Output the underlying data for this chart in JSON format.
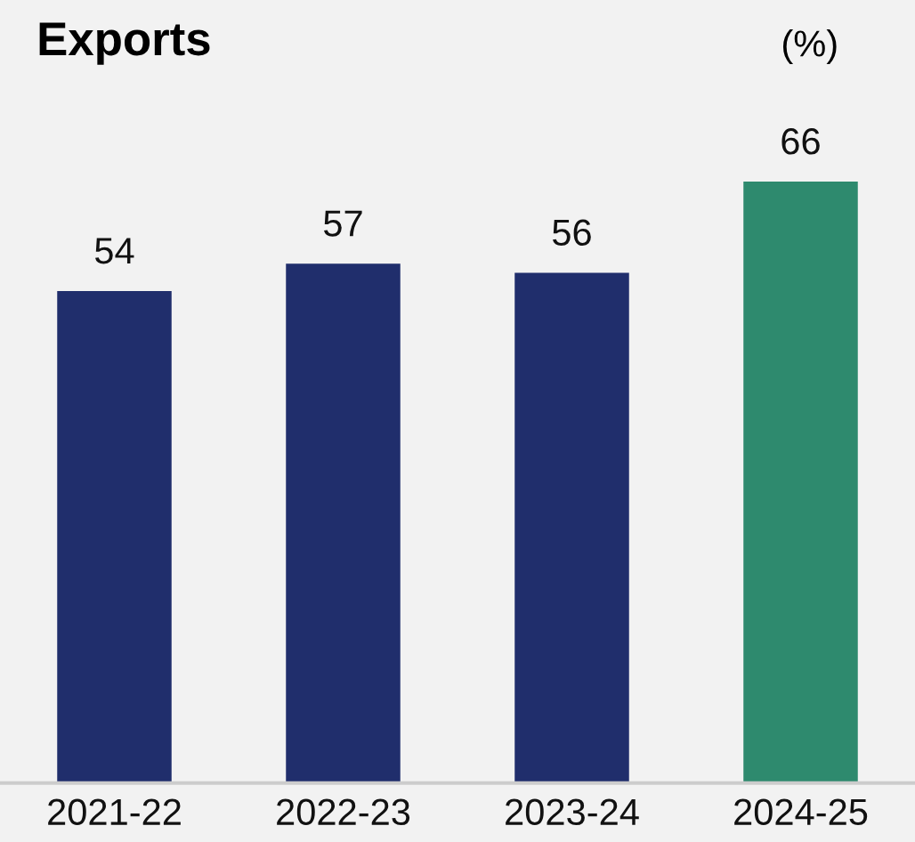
{
  "chart_data": {
    "type": "bar",
    "title": "Exports",
    "ylabel": "(%)",
    "categories": [
      "2021-22",
      "2022-23",
      "2023-24",
      "2024-25"
    ],
    "values": [
      54,
      57,
      56,
      66
    ],
    "colors": [
      "#202e6c",
      "#202e6c",
      "#202e6c",
      "#2e8a6e"
    ],
    "data_labels": true,
    "grid": false,
    "legend": false
  }
}
